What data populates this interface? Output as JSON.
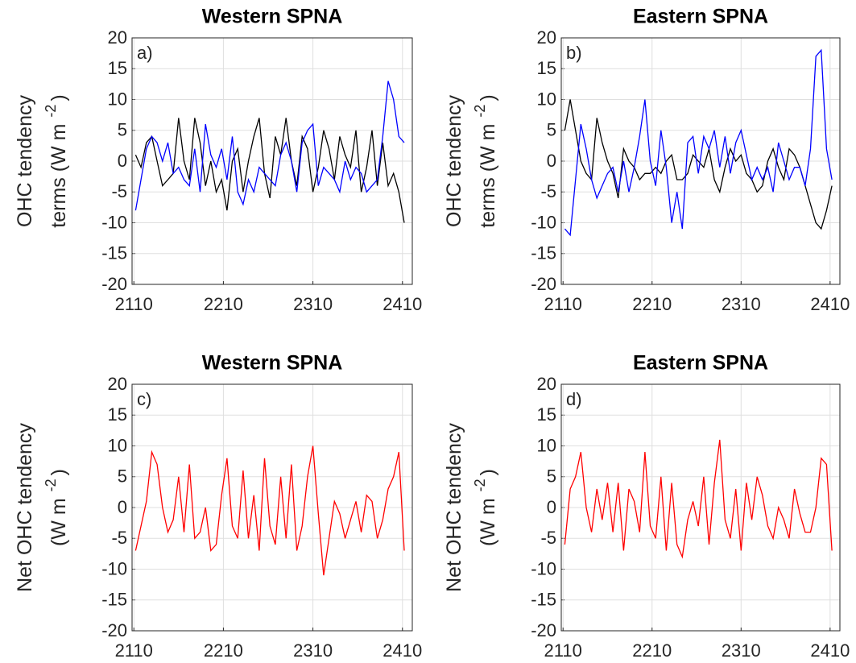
{
  "chart_data": [
    {
      "type": "line",
      "title": "Western SPNA",
      "panel_label": "a)",
      "ylabel": [
        {
          "base": "OHC tendency"
        },
        {
          "base": "terms (W m",
          "sup": "-2",
          "tail": ")"
        }
      ],
      "x": [
        2112,
        2118,
        2124,
        2130,
        2136,
        2142,
        2148,
        2154,
        2160,
        2166,
        2172,
        2178,
        2184,
        2190,
        2196,
        2202,
        2208,
        2214,
        2220,
        2226,
        2232,
        2238,
        2244,
        2250,
        2256,
        2262,
        2268,
        2274,
        2280,
        2286,
        2292,
        2298,
        2304,
        2310,
        2316,
        2322,
        2328,
        2334,
        2340,
        2346,
        2352,
        2358,
        2364,
        2370,
        2376,
        2382,
        2388,
        2394,
        2400,
        2406,
        2412
      ],
      "xlim": [
        2108,
        2421
      ],
      "xticks": [
        2110,
        2210,
        2310,
        2410
      ],
      "ylim": [
        -20,
        20
      ],
      "yticks": [
        -20,
        -15,
        -10,
        -5,
        0,
        5,
        10,
        15,
        20
      ],
      "grid": true,
      "series": [
        {
          "color": "#000000",
          "values": [
            1,
            -1,
            3,
            4,
            0,
            -4,
            -3,
            -2,
            7,
            0,
            -3,
            7,
            3,
            -4,
            0,
            -5,
            -3,
            -8,
            0,
            2,
            -5,
            0,
            4,
            7,
            -2,
            -6,
            4,
            1,
            7,
            0,
            -4,
            4,
            2,
            -5,
            -1,
            5,
            2,
            -3,
            4,
            1,
            -1,
            5,
            -5,
            -1,
            5,
            -4,
            3,
            -4,
            -2,
            -5,
            -10
          ]
        },
        {
          "color": "#0000ff",
          "values": [
            -8,
            -3,
            2,
            4,
            3,
            0,
            3,
            -2,
            -1,
            -3,
            -4,
            2,
            -5,
            6,
            1,
            -1,
            2,
            -3,
            4,
            -5,
            -7,
            -3,
            -5,
            -1,
            -2,
            -3,
            -4,
            1,
            3,
            0,
            -5,
            3,
            5,
            6,
            -4,
            -1,
            -2,
            -3,
            -5,
            0,
            -3,
            -1,
            -2,
            -5,
            -4,
            -3,
            4,
            13,
            10,
            4,
            3
          ]
        }
      ]
    },
    {
      "type": "line",
      "title": "Eastern SPNA",
      "panel_label": "b)",
      "ylabel": [
        {
          "base": "OHC tendency"
        },
        {
          "base": "terms (W m",
          "sup": "-2",
          "tail": ")"
        }
      ],
      "x": [
        2112,
        2118,
        2124,
        2130,
        2136,
        2142,
        2148,
        2154,
        2160,
        2166,
        2172,
        2178,
        2184,
        2190,
        2196,
        2202,
        2208,
        2214,
        2220,
        2226,
        2232,
        2238,
        2244,
        2250,
        2256,
        2262,
        2268,
        2274,
        2280,
        2286,
        2292,
        2298,
        2304,
        2310,
        2316,
        2322,
        2328,
        2334,
        2340,
        2346,
        2352,
        2358,
        2364,
        2370,
        2376,
        2382,
        2388,
        2394,
        2400,
        2406,
        2412
      ],
      "xlim": [
        2108,
        2421
      ],
      "xticks": [
        2110,
        2210,
        2310,
        2410
      ],
      "ylim": [
        -20,
        20
      ],
      "yticks": [
        -20,
        -15,
        -10,
        -5,
        0,
        5,
        10,
        15,
        20
      ],
      "grid": true,
      "series": [
        {
          "color": "#000000",
          "values": [
            5,
            10,
            5,
            0,
            -2,
            -3,
            7,
            3,
            0,
            -2,
            -6,
            2,
            0,
            -1,
            -3,
            -2,
            -2,
            -1,
            -2,
            0,
            1,
            -3,
            -3,
            -2,
            1,
            0,
            -1,
            2,
            -3,
            -5,
            -1,
            2,
            0,
            1,
            -2,
            -3,
            -5,
            -4,
            0,
            2,
            -1,
            -3,
            2,
            1,
            -1,
            -4,
            -7,
            -10,
            -11,
            -8,
            -4
          ]
        },
        {
          "color": "#0000ff",
          "values": [
            -11,
            -12,
            -3,
            6,
            2,
            -3,
            -6,
            -4,
            -2,
            -1,
            -5,
            0,
            -5,
            -1,
            4,
            10,
            0,
            -4,
            5,
            -1,
            -10,
            -5,
            -11,
            3,
            4,
            -2,
            4,
            2,
            5,
            -1,
            4,
            -2,
            3,
            5,
            1,
            -3,
            -1,
            -3,
            -1,
            -5,
            3,
            0,
            -3,
            -1,
            -1,
            -4,
            2,
            17,
            18,
            2,
            -3
          ]
        }
      ]
    },
    {
      "type": "line",
      "title": "Western SPNA",
      "panel_label": "c)",
      "ylabel": [
        {
          "base": "Net OHC tendency"
        },
        {
          "base": "(W m",
          "sup": "-2",
          "tail": ")"
        }
      ],
      "x": [
        2112,
        2118,
        2124,
        2130,
        2136,
        2142,
        2148,
        2154,
        2160,
        2166,
        2172,
        2178,
        2184,
        2190,
        2196,
        2202,
        2208,
        2214,
        2220,
        2226,
        2232,
        2238,
        2244,
        2250,
        2256,
        2262,
        2268,
        2274,
        2280,
        2286,
        2292,
        2298,
        2304,
        2310,
        2316,
        2322,
        2328,
        2334,
        2340,
        2346,
        2352,
        2358,
        2364,
        2370,
        2376,
        2382,
        2388,
        2394,
        2400,
        2406,
        2412
      ],
      "xlim": [
        2108,
        2421
      ],
      "xticks": [
        2110,
        2210,
        2310,
        2410
      ],
      "ylim": [
        -20,
        20
      ],
      "yticks": [
        -20,
        -15,
        -10,
        -5,
        0,
        5,
        10,
        15,
        20
      ],
      "grid": true,
      "series": [
        {
          "color": "#ff0000",
          "values": [
            -7,
            -3,
            1,
            9,
            7,
            0,
            -4,
            -2,
            5,
            -4,
            7,
            -5,
            -4,
            0,
            -7,
            -6,
            2,
            8,
            -3,
            -5,
            6,
            -5,
            2,
            -7,
            8,
            -3,
            -6,
            5,
            -5,
            7,
            -7,
            -3,
            5,
            10,
            -1,
            -11,
            -5,
            1,
            -1,
            -5,
            -2,
            1,
            -4,
            2,
            1,
            -5,
            -2,
            3,
            5,
            9,
            -7
          ]
        }
      ]
    },
    {
      "type": "line",
      "title": "Eastern SPNA",
      "panel_label": "d)",
      "ylabel": [
        {
          "base": "Net OHC tendency"
        },
        {
          "base": "(W m",
          "sup": "-2",
          "tail": ")"
        }
      ],
      "x": [
        2112,
        2118,
        2124,
        2130,
        2136,
        2142,
        2148,
        2154,
        2160,
        2166,
        2172,
        2178,
        2184,
        2190,
        2196,
        2202,
        2208,
        2214,
        2220,
        2226,
        2232,
        2238,
        2244,
        2250,
        2256,
        2262,
        2268,
        2274,
        2280,
        2286,
        2292,
        2298,
        2304,
        2310,
        2316,
        2322,
        2328,
        2334,
        2340,
        2346,
        2352,
        2358,
        2364,
        2370,
        2376,
        2382,
        2388,
        2394,
        2400,
        2406,
        2412
      ],
      "xlim": [
        2108,
        2421
      ],
      "xticks": [
        2110,
        2210,
        2310,
        2410
      ],
      "ylim": [
        -20,
        20
      ],
      "yticks": [
        -20,
        -15,
        -10,
        -5,
        0,
        5,
        10,
        15,
        20
      ],
      "grid": true,
      "series": [
        {
          "color": "#ff0000",
          "values": [
            -6,
            3,
            5,
            9,
            0,
            -4,
            3,
            -2,
            4,
            -4,
            4,
            -7,
            3,
            1,
            -4,
            9,
            -3,
            -5,
            5,
            -7,
            4,
            -6,
            -8,
            -2,
            1,
            -3,
            5,
            -6,
            4,
            11,
            -2,
            -5,
            3,
            -7,
            4,
            -2,
            5,
            2,
            -3,
            -5,
            0,
            -2,
            -5,
            3,
            -1,
            -4,
            -4,
            0,
            8,
            7,
            -7
          ]
        }
      ]
    }
  ]
}
